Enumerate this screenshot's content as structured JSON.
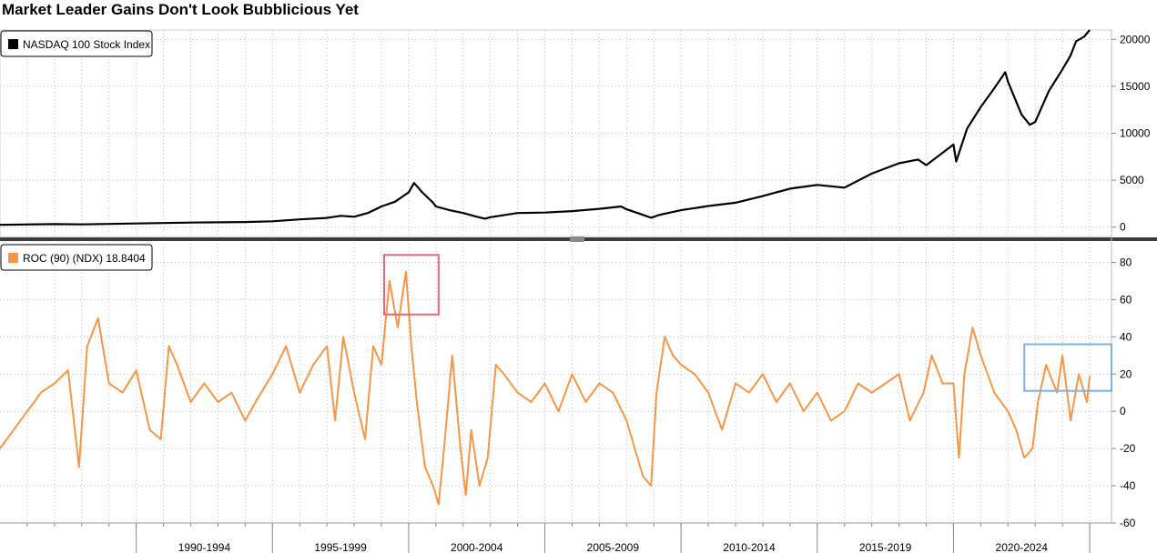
{
  "title": "Market Leader Gains Don't Look Bubblicious Yet",
  "chart_data": [
    {
      "type": "line",
      "panel": "top",
      "legend": "NASDAQ 100 Stock Index",
      "color": "#000000",
      "ylim": [
        -1000,
        21000
      ],
      "yticks": [
        0,
        5000,
        10000,
        15000,
        20000
      ],
      "grid": true,
      "legend_position": "top-left",
      "series": [
        {
          "name": "NASDAQ 100 Stock Index",
          "x": [
            1985.0,
            1987.0,
            1988.0,
            1990.0,
            1992.0,
            1994.0,
            1995.0,
            1996.0,
            1997.0,
            1997.5,
            1998.0,
            1998.5,
            1999.0,
            1999.5,
            2000.0,
            2000.2,
            2000.5,
            2000.9,
            2001.0,
            2001.5,
            2002.0,
            2002.5,
            2002.8,
            2003.0,
            2004.0,
            2005.0,
            2006.0,
            2007.0,
            2007.8,
            2008.0,
            2008.5,
            2008.9,
            2009.2,
            2010.0,
            2011.0,
            2012.0,
            2013.0,
            2014.0,
            2015.0,
            2016.0,
            2017.0,
            2018.0,
            2018.7,
            2019.0,
            2019.5,
            2020.0,
            2020.1,
            2020.5,
            2021.0,
            2021.5,
            2021.9,
            2022.0,
            2022.5,
            2022.8,
            2023.0,
            2023.5,
            2024.0,
            2024.3,
            2024.5,
            2024.8,
            2025.0
          ],
          "y": [
            240,
            320,
            290,
            390,
            480,
            540,
            620,
            820,
            980,
            1200,
            1100,
            1500,
            2200,
            2700,
            3700,
            4700,
            3700,
            2600,
            2200,
            1800,
            1500,
            1100,
            900,
            1050,
            1500,
            1550,
            1700,
            1950,
            2200,
            1900,
            1400,
            1000,
            1300,
            1800,
            2250,
            2600,
            3300,
            4100,
            4500,
            4200,
            5700,
            6800,
            7200,
            6600,
            7700,
            8800,
            7000,
            10500,
            12800,
            14800,
            16500,
            15500,
            12000,
            10900,
            11200,
            14500,
            16800,
            18300,
            19800,
            20300,
            21000
          ]
        }
      ]
    },
    {
      "type": "line",
      "panel": "bottom",
      "legend": "ROC (90) (NDX) 18.8404",
      "color": "#F79646",
      "ylim": [
        -60,
        90
      ],
      "yticks": [
        80,
        60,
        40,
        20,
        0,
        -20,
        -40,
        -60
      ],
      "grid": true,
      "legend_position": "top-left",
      "series": [
        {
          "name": "ROC (90) (NDX)",
          "x": [
            1985.0,
            1985.5,
            1986.0,
            1986.5,
            1987.0,
            1987.5,
            1987.9,
            1988.2,
            1988.6,
            1989.0,
            1989.5,
            1990.0,
            1990.5,
            1990.9,
            1991.2,
            1991.5,
            1992.0,
            1992.5,
            1993.0,
            1993.5,
            1994.0,
            1994.5,
            1995.0,
            1995.5,
            1996.0,
            1996.5,
            1997.0,
            1997.3,
            1997.6,
            1998.0,
            1998.4,
            1998.7,
            1999.0,
            1999.3,
            1999.6,
            1999.9,
            2000.1,
            2000.3,
            2000.6,
            2000.9,
            2001.1,
            2001.3,
            2001.6,
            2001.9,
            2002.1,
            2002.3,
            2002.6,
            2002.9,
            2003.2,
            2003.5,
            2004.0,
            2004.5,
            2005.0,
            2005.5,
            2006.0,
            2006.5,
            2007.0,
            2007.5,
            2008.0,
            2008.3,
            2008.6,
            2008.9,
            2009.1,
            2009.4,
            2009.7,
            2010.0,
            2010.5,
            2011.0,
            2011.5,
            2012.0,
            2012.5,
            2013.0,
            2013.5,
            2014.0,
            2014.5,
            2015.0,
            2015.5,
            2016.0,
            2016.5,
            2017.0,
            2017.5,
            2018.0,
            2018.4,
            2018.9,
            2019.2,
            2019.6,
            2020.0,
            2020.2,
            2020.4,
            2020.7,
            2021.0,
            2021.5,
            2022.0,
            2022.3,
            2022.6,
            2022.9,
            2023.1,
            2023.4,
            2023.8,
            2024.0,
            2024.3,
            2024.6,
            2024.9,
            2025.0
          ],
          "y": [
            -20,
            -10,
            0,
            10,
            15,
            22,
            -30,
            35,
            50,
            15,
            10,
            22,
            -10,
            -15,
            35,
            25,
            5,
            15,
            5,
            10,
            -5,
            8,
            20,
            35,
            10,
            25,
            35,
            -5,
            40,
            10,
            -15,
            35,
            25,
            70,
            45,
            75,
            35,
            5,
            -30,
            -40,
            -50,
            -20,
            30,
            -20,
            -45,
            -10,
            -40,
            -25,
            25,
            20,
            10,
            5,
            15,
            0,
            20,
            5,
            15,
            10,
            -5,
            -20,
            -35,
            -40,
            10,
            40,
            30,
            25,
            20,
            10,
            -10,
            15,
            10,
            20,
            5,
            15,
            0,
            10,
            -5,
            0,
            15,
            10,
            15,
            20,
            -5,
            10,
            30,
            15,
            15,
            -25,
            20,
            45,
            30,
            10,
            0,
            -10,
            -25,
            -20,
            5,
            25,
            10,
            30,
            -5,
            20,
            5,
            18.84
          ]
        }
      ]
    },
    {
      "type": "axis",
      "xtick_labels": [
        "1990-1994",
        "1995-1999",
        "2000-2004",
        "2005-2009",
        "2010-2014",
        "2015-2019",
        "2020-2024"
      ],
      "xlim": [
        1985,
        2025.8
      ]
    }
  ]
}
